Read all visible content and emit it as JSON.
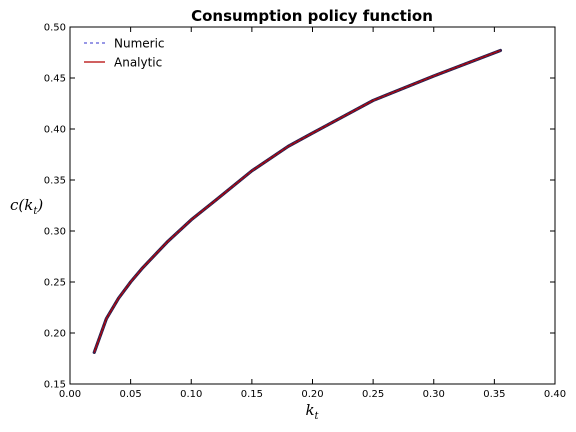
{
  "chart_data": {
    "type": "line",
    "title": "Consumption policy function",
    "xlabel": "k_t",
    "ylabel": "c(k_t)",
    "xlim": [
      0.0,
      0.4
    ],
    "ylim": [
      0.15,
      0.5
    ],
    "xticks": [
      "0.00",
      "0.05",
      "0.10",
      "0.15",
      "0.20",
      "0.25",
      "0.30",
      "0.35",
      "0.40"
    ],
    "yticks": [
      "0.15",
      "0.20",
      "0.25",
      "0.30",
      "0.35",
      "0.40",
      "0.45",
      "0.50"
    ],
    "grid": false,
    "legend_position": "top-left",
    "x": [
      0.02,
      0.03,
      0.04,
      0.05,
      0.06,
      0.08,
      0.1,
      0.12,
      0.15,
      0.18,
      0.2,
      0.25,
      0.3,
      0.355
    ],
    "series": [
      {
        "name": "Numeric",
        "style": "dashed",
        "color": "#5b5bd6",
        "values": [
          0.181,
          0.214,
          0.234,
          0.25,
          0.264,
          0.289,
          0.311,
          0.33,
          0.359,
          0.383,
          0.396,
          0.428,
          0.452,
          0.477
        ]
      },
      {
        "name": "Analytic",
        "style": "solid",
        "color": "#b30000",
        "values": [
          0.181,
          0.214,
          0.234,
          0.25,
          0.264,
          0.289,
          0.311,
          0.33,
          0.359,
          0.383,
          0.396,
          0.428,
          0.452,
          0.477
        ]
      }
    ]
  }
}
